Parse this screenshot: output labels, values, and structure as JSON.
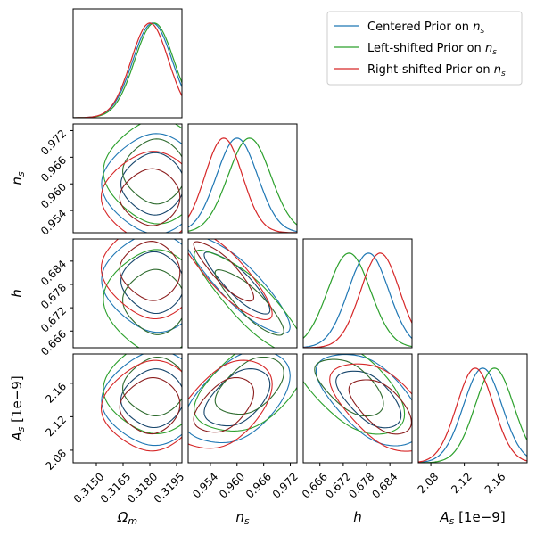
{
  "chart_data": {
    "type": "corner",
    "colors": {
      "centered": "#1f77b4",
      "left": "#2ca02c",
      "right": "#d62728",
      "inner_centered": "#16456b",
      "inner_left": "#2e6b2e",
      "inner_right": "#8b1d1d"
    },
    "legend": {
      "placement": "top-right",
      "entries": [
        {
          "key": "centered",
          "label": "Centered Prior on ",
          "sym": "n",
          "sub": "s"
        },
        {
          "key": "left",
          "label": "Left-shifted Prior on ",
          "sym": "n",
          "sub": "s"
        },
        {
          "key": "right",
          "label": "Right-shifted Prior on ",
          "sym": "n",
          "sub": "s"
        }
      ]
    },
    "params": [
      {
        "id": "om",
        "sym": "Ω",
        "sub": "m",
        "suffix": "",
        "range": [
          0.3137,
          0.3198
        ],
        "ticks": [
          "0.3150",
          "0.3165",
          "0.3180",
          "0.3195"
        ],
        "tick_values": [
          0.315,
          0.3165,
          0.318,
          0.3195
        ]
      },
      {
        "id": "ns",
        "sym": "n",
        "sub": "s",
        "suffix": "",
        "range": [
          0.949,
          0.9735
        ],
        "ticks": [
          "0.954",
          "0.960",
          "0.966",
          "0.972"
        ],
        "tick_values": [
          0.954,
          0.96,
          0.966,
          0.972
        ]
      },
      {
        "id": "h",
        "sym": "h",
        "sub": "",
        "suffix": "",
        "range": [
          0.6617,
          0.6897
        ],
        "ticks": [
          "0.666",
          "0.672",
          "0.678",
          "0.684"
        ],
        "tick_values": [
          0.666,
          0.672,
          0.678,
          0.684
        ]
      },
      {
        "id": "As",
        "sym": "A",
        "sub": "s",
        "suffix": " [1e−9]",
        "range": [
          2.065,
          2.195
        ],
        "ticks": [
          "2.08",
          "2.12",
          "2.16"
        ],
        "tick_values": [
          2.08,
          2.12,
          2.16
        ]
      }
    ],
    "series": [
      {
        "key": "centered",
        "name": "Centered Prior on n_s",
        "mean": [
          0.31815,
          0.96,
          0.6785,
          2.142
        ],
        "sigma": [
          0.0011,
          0.0046,
          0.0052,
          0.023
        ]
      },
      {
        "key": "left",
        "name": "Left-shifted Prior on n_s",
        "mean": [
          0.31825,
          0.9628,
          0.6735,
          2.156
        ],
        "sigma": [
          0.0011,
          0.0048,
          0.0055,
          0.023
        ]
      },
      {
        "key": "right",
        "name": "Right-shifted Prior on n_s",
        "mean": [
          0.318,
          0.957,
          0.6815,
          2.133
        ],
        "sigma": [
          0.00105,
          0.0042,
          0.005,
          0.022
        ]
      }
    ],
    "correlations": [
      {
        "i": 1,
        "j": 0,
        "rho": 0.0
      },
      {
        "i": 2,
        "j": 0,
        "rho": -0.05
      },
      {
        "i": 2,
        "j": 1,
        "rho": -0.85
      },
      {
        "i": 3,
        "j": 0,
        "rho": 0.05
      },
      {
        "i": 3,
        "j": 1,
        "rho": 0.45
      },
      {
        "i": 3,
        "j": 2,
        "rho": -0.55
      }
    ],
    "contour_levels": [
      "68%",
      "95%"
    ]
  }
}
